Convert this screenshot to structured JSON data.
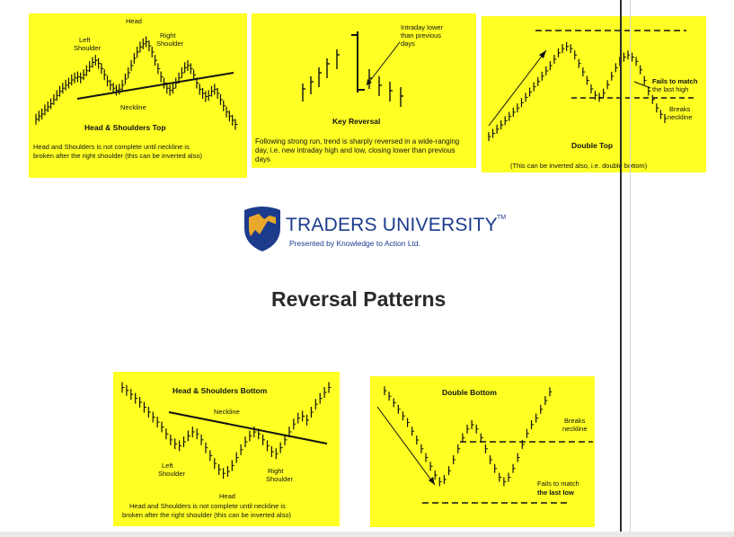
{
  "brand": {
    "name": "TRADERS UNIVERSITY",
    "tm": "TM",
    "tagline": "Presented by Knowledge to Action Ltd."
  },
  "page_title": "Reversal Patterns",
  "panels": {
    "hs_top": {
      "title": "Head & Shoulders Top",
      "head": "Head",
      "left_shoulder_1": "Left",
      "left_shoulder_2": "Shoulder",
      "right_shoulder_1": "Right",
      "right_shoulder_2": "Shoulder",
      "neckline": "Neckline",
      "caption_1": "Head and Shoulders is not complete until neckline is",
      "caption_2": "broken after the right shoulder (this can be inverted also)"
    },
    "key_reversal": {
      "title": "Key Reversal",
      "note_1": "Intraday lower",
      "note_2": "than previous",
      "note_3": "days",
      "caption": "Following strong run, trend is sharply reversed in a wide-ranging day, i.e. new intraday high and low, closing lower than previous days"
    },
    "double_top": {
      "title": "Double Top",
      "fails_1": "Fails to match",
      "fails_2": "the last high",
      "breaks_1": "Breaks",
      "breaks_2": "neckline",
      "caption": "(This can be inverted also, i.e. double bottom)"
    },
    "hs_bottom": {
      "title": "Head & Shoulders Bottom",
      "neckline": "Neckline",
      "left_shoulder_1": "Left",
      "left_shoulder_2": "Shoulder",
      "right_shoulder_1": "Right",
      "right_shoulder_2": "Shoulder",
      "head": "Head",
      "caption_1": "Head and Shoulders is not complete until neckline is",
      "caption_2": "broken after the right shoulder (this can be inverted also)"
    },
    "double_bottom": {
      "title": "Double Bottom",
      "breaks_1": "Breaks",
      "breaks_2": "neckline",
      "fails_1": "Fails to match",
      "fails_2": "the last low"
    }
  },
  "colors": {
    "panel_bg": "#ffff24",
    "ink": "#111111",
    "brand_blue": "#1c3b8c",
    "shield_gold": "#e8a92a"
  }
}
